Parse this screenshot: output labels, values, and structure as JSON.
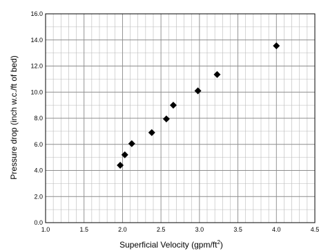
{
  "chart_data": {
    "type": "scatter",
    "title": "",
    "xlabel_main": "Superficial Velocity (gpm/ft",
    "xlabel_sup": "2",
    "xlabel_end": ")",
    "ylabel": "Pressure drop (inch w.c./ft of bed)",
    "xlim": [
      1.0,
      4.5
    ],
    "ylim": [
      0.0,
      16.0
    ],
    "x_ticks": [
      1.0,
      1.5,
      2.0,
      2.5,
      3.0,
      3.5,
      4.0,
      4.5
    ],
    "x_tick_labels": [
      "1.0",
      "1.5",
      "2.0",
      "2.5",
      "3.0",
      "3.5",
      "4.0",
      "4.5"
    ],
    "y_ticks": [
      0.0,
      2.0,
      4.0,
      6.0,
      8.0,
      10.0,
      12.0,
      14.0,
      16.0
    ],
    "y_tick_labels": [
      "0.0",
      "2.0",
      "4.0",
      "6.0",
      "8.0",
      "10.0",
      "12.0",
      "14.0",
      "16.0"
    ],
    "x_minor_step": 0.1,
    "y_minor_step": 1.0,
    "grid": true,
    "marker": "diamond",
    "marker_color": "#000000",
    "points": [
      {
        "x": 1.97,
        "y": 4.4
      },
      {
        "x": 2.03,
        "y": 5.2
      },
      {
        "x": 2.12,
        "y": 6.05
      },
      {
        "x": 2.38,
        "y": 6.9
      },
      {
        "x": 2.57,
        "y": 7.95
      },
      {
        "x": 2.66,
        "y": 9.0
      },
      {
        "x": 2.98,
        "y": 10.1
      },
      {
        "x": 3.23,
        "y": 11.35
      },
      {
        "x": 4.0,
        "y": 13.55
      }
    ]
  }
}
